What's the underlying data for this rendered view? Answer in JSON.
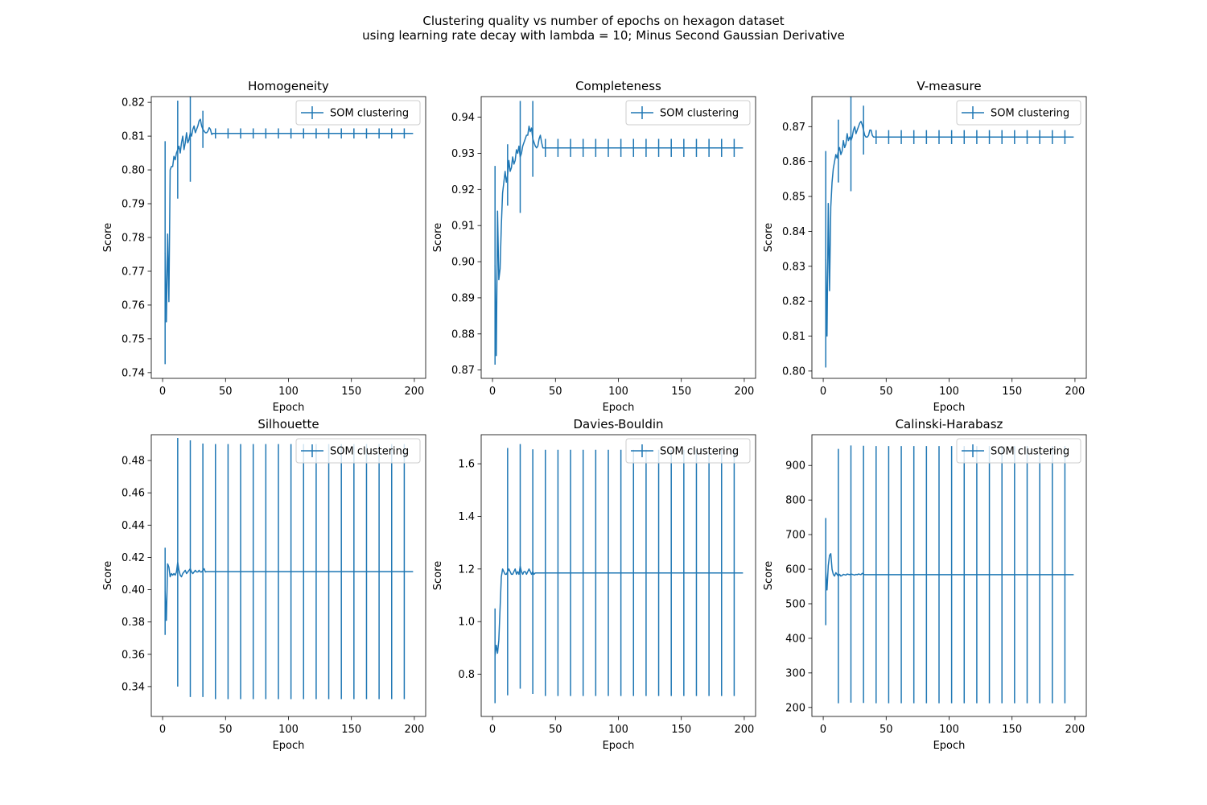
{
  "figure": {
    "title_line1": "Clustering quality vs number of epochs on hexagon dataset",
    "title_line2": "using learning rate decay with lambda = 10; Minus Second Gaussian Derivative",
    "line_color": "#1f77b4",
    "error_bar_every": 10
  },
  "chart_data": [
    {
      "type": "line",
      "title": "Homogeneity",
      "xlabel": "Epoch",
      "ylabel": "Score",
      "xlim": [
        -9,
        209
      ],
      "ylim": [
        0.7383,
        0.8217
      ],
      "xticks": [
        0,
        50,
        100,
        150,
        200
      ],
      "yticks": [
        0.74,
        0.75,
        0.76,
        0.77,
        0.78,
        0.79,
        0.8,
        0.81,
        0.82
      ],
      "ytick_decimals": 2,
      "legend": "top-right",
      "series": [
        {
          "name": "SOM clustering",
          "x_start": 2,
          "x_end": 199,
          "head": [
            0.7755,
            0.755,
            0.781,
            0.761,
            0.8,
            0.801,
            0.801,
            0.804,
            0.803,
            0.805,
            0.806,
            0.807,
            0.805,
            0.808,
            0.81,
            0.806,
            0.808,
            0.811,
            0.808,
            0.809,
            0.811,
            0.81,
            0.812,
            0.813,
            0.811,
            0.812,
            0.813,
            0.8145,
            0.815,
            0.813,
            0.812,
            0.8115,
            0.811,
            0.811,
            0.8115,
            0.8125,
            0.812,
            0.8105,
            0.8108,
            0.8108
          ],
          "plateau": 0.8108,
          "err_head": [
            0.033,
            0.0025,
            0.022,
            0.003,
            0.004,
            0.003,
            0.003,
            0.004,
            0.003,
            0.003,
            0.0145,
            0.003,
            0.003,
            0.004,
            0.003,
            0.003,
            0.004,
            0.003,
            0.003,
            0.003,
            0.0145,
            0.003,
            0.003,
            0.004,
            0.003,
            0.003,
            0.004,
            0.003,
            0.003,
            0.003,
            0.0055,
            0.002,
            0.002,
            0.002,
            0.002,
            0.002,
            0.002,
            0.002,
            0.002,
            0.002
          ],
          "err_plateau": 0.0015
        }
      ]
    },
    {
      "type": "line",
      "title": "Completeness",
      "xlabel": "Epoch",
      "ylabel": "Score",
      "xlim": [
        -9,
        209
      ],
      "ylim": [
        0.8677,
        0.9457
      ],
      "xticks": [
        0,
        50,
        100,
        150,
        200
      ],
      "yticks": [
        0.87,
        0.88,
        0.89,
        0.9,
        0.91,
        0.92,
        0.93,
        0.94
      ],
      "ytick_decimals": 2,
      "legend": "top-right",
      "series": [
        {
          "name": "SOM clustering",
          "x_start": 2,
          "x_end": 199,
          "head": [
            0.899,
            0.874,
            0.914,
            0.895,
            0.898,
            0.91,
            0.919,
            0.922,
            0.925,
            0.922,
            0.924,
            0.928,
            0.925,
            0.926,
            0.929,
            0.927,
            0.928,
            0.931,
            0.93,
            0.932,
            0.929,
            0.93,
            0.932,
            0.933,
            0.934,
            0.935,
            0.935,
            0.9375,
            0.936,
            0.937,
            0.934,
            0.933,
            0.932,
            0.9315,
            0.932,
            0.934,
            0.935,
            0.933,
            0.9315,
            0.9315
          ],
          "plateau": 0.9315,
          "err_head": [
            0.0275,
            0.0025,
            0.007,
            0.003,
            0.003,
            0.004,
            0.003,
            0.003,
            0.004,
            0.003,
            0.0085,
            0.003,
            0.003,
            0.004,
            0.003,
            0.003,
            0.004,
            0.003,
            0.003,
            0.003,
            0.0155,
            0.003,
            0.003,
            0.004,
            0.003,
            0.003,
            0.004,
            0.003,
            0.003,
            0.003,
            0.0105,
            0.0025,
            0.0025,
            0.0025,
            0.0025,
            0.0025,
            0.0025,
            0.0025,
            0.0025,
            0.0025
          ],
          "err_plateau": 0.0025
        }
      ]
    },
    {
      "type": "line",
      "title": "V-measure",
      "xlabel": "Epoch",
      "ylabel": "Score",
      "xlim": [
        -9,
        209
      ],
      "ylim": [
        0.7979,
        0.8786
      ],
      "xticks": [
        0,
        50,
        100,
        150,
        200
      ],
      "yticks": [
        0.8,
        0.81,
        0.82,
        0.83,
        0.84,
        0.85,
        0.86,
        0.87
      ],
      "ytick_decimals": 2,
      "legend": "top-right",
      "series": [
        {
          "name": "SOM clustering",
          "x_start": 2,
          "x_end": 199,
          "head": [
            0.832,
            0.81,
            0.848,
            0.823,
            0.847,
            0.854,
            0.858,
            0.86,
            0.862,
            0.861,
            0.863,
            0.864,
            0.862,
            0.863,
            0.866,
            0.864,
            0.865,
            0.868,
            0.866,
            0.867,
            0.866,
            0.867,
            0.869,
            0.87,
            0.868,
            0.869,
            0.87,
            0.871,
            0.8715,
            0.8705,
            0.869,
            0.8675,
            0.867,
            0.867,
            0.8675,
            0.869,
            0.869,
            0.8675,
            0.867,
            0.867
          ],
          "plateau": 0.867,
          "err_head": [
            0.031,
            0.0025,
            0.011,
            0.003,
            0.003,
            0.004,
            0.003,
            0.003,
            0.004,
            0.003,
            0.009,
            0.003,
            0.003,
            0.004,
            0.003,
            0.003,
            0.004,
            0.003,
            0.003,
            0.003,
            0.0145,
            0.003,
            0.003,
            0.004,
            0.003,
            0.003,
            0.004,
            0.003,
            0.003,
            0.003,
            0.007,
            0.002,
            0.002,
            0.002,
            0.002,
            0.002,
            0.002,
            0.002,
            0.002,
            0.002
          ],
          "err_plateau": 0.002
        }
      ]
    },
    {
      "type": "line",
      "title": "Silhouette",
      "xlabel": "Epoch",
      "ylabel": "Score",
      "xlim": [
        -9,
        209
      ],
      "ylim": [
        0.3215,
        0.496
      ],
      "xticks": [
        0,
        50,
        100,
        150,
        200
      ],
      "yticks": [
        0.34,
        0.36,
        0.38,
        0.4,
        0.42,
        0.44,
        0.46,
        0.48
      ],
      "ytick_decimals": 2,
      "legend": "top-right",
      "series": [
        {
          "name": "SOM clustering",
          "x_start": 2,
          "x_end": 199,
          "head": [
            0.399,
            0.381,
            0.416,
            0.414,
            0.408,
            0.41,
            0.409,
            0.41,
            0.409,
            0.411,
            0.417,
            0.412,
            0.409,
            0.408,
            0.41,
            0.411,
            0.412,
            0.41,
            0.411,
            0.412,
            0.413,
            0.411,
            0.41,
            0.411,
            0.412,
            0.411,
            0.411,
            0.412,
            0.411,
            0.411,
            0.412,
            0.413,
            0.411,
            0.4112,
            0.4112,
            0.4112,
            0.4112,
            0.4112,
            0.4112,
            0.4112
          ],
          "plateau": 0.4112,
          "err_head": [
            0.027,
            0.002,
            0.002,
            0.002,
            0.002,
            0.002,
            0.002,
            0.002,
            0.002,
            0.002,
            0.077,
            0.002,
            0.002,
            0.002,
            0.002,
            0.002,
            0.002,
            0.002,
            0.002,
            0.002,
            0.0795,
            0.002,
            0.002,
            0.002,
            0.002,
            0.002,
            0.002,
            0.002,
            0.002,
            0.002,
            0.0785,
            0.002,
            0.002,
            0.002,
            0.002,
            0.002,
            0.002,
            0.002,
            0.002,
            0.002
          ],
          "err_plateau": 0.079
        }
      ]
    },
    {
      "type": "line",
      "title": "Davies-Bouldin",
      "xlabel": "Epoch",
      "ylabel": "Score",
      "xlim": [
        -9,
        209
      ],
      "ylim": [
        0.6395,
        1.7105
      ],
      "xticks": [
        0,
        50,
        100,
        150,
        200
      ],
      "yticks": [
        0.8,
        1.0,
        1.2,
        1.4,
        1.6
      ],
      "ytick_decimals": 1,
      "legend": "top-right",
      "series": [
        {
          "name": "SOM clustering",
          "x_start": 2,
          "x_end": 199,
          "head": [
            0.87,
            0.91,
            0.88,
            0.93,
            1.05,
            1.17,
            1.2,
            1.19,
            1.18,
            1.18,
            1.19,
            1.2,
            1.19,
            1.18,
            1.18,
            1.19,
            1.2,
            1.18,
            1.19,
            1.18,
            1.21,
            1.19,
            1.18,
            1.19,
            1.19,
            1.18,
            1.19,
            1.2,
            1.19,
            1.18,
            1.19,
            1.18,
            1.185,
            1.185,
            1.185,
            1.185,
            1.185,
            1.185,
            1.185,
            1.185
          ],
          "plateau": 1.185,
          "err_head": [
            0.18,
            0.01,
            0.01,
            0.01,
            0.01,
            0.01,
            0.01,
            0.01,
            0.01,
            0.01,
            0.47,
            0.01,
            0.01,
            0.01,
            0.01,
            0.01,
            0.01,
            0.01,
            0.01,
            0.01,
            0.465,
            0.01,
            0.01,
            0.01,
            0.01,
            0.01,
            0.01,
            0.01,
            0.01,
            0.01,
            0.465,
            0.01,
            0.01,
            0.01,
            0.01,
            0.01,
            0.01,
            0.01,
            0.01,
            0.01
          ],
          "err_plateau": 0.468
        }
      ]
    },
    {
      "type": "line",
      "title": "Calinski-Harabasz",
      "xlabel": "Epoch",
      "ylabel": "Score",
      "xlim": [
        -9,
        209
      ],
      "ylim": [
        174,
        989
      ],
      "xticks": [
        0,
        50,
        100,
        150,
        200
      ],
      "yticks": [
        200,
        300,
        400,
        500,
        600,
        700,
        800,
        900
      ],
      "ytick_decimals": 0,
      "legend": "top-right",
      "series": [
        {
          "name": "SOM clustering",
          "x_start": 2,
          "x_end": 199,
          "head": [
            593,
            540,
            610,
            640,
            645,
            600,
            585,
            580,
            590,
            585,
            580,
            585,
            580,
            582,
            585,
            584,
            583,
            586,
            585,
            584,
            586,
            585,
            584,
            583,
            585,
            584,
            586,
            585,
            584,
            588,
            585,
            584,
            584,
            584,
            584,
            584,
            584,
            584,
            584,
            584
          ],
          "plateau": 584,
          "err_head": [
            155,
            3,
            3,
            3,
            3,
            3,
            3,
            3,
            3,
            3,
            368,
            3,
            3,
            3,
            3,
            3,
            3,
            3,
            3,
            3,
            372,
            3,
            3,
            3,
            3,
            3,
            3,
            3,
            3,
            3,
            372,
            3,
            3,
            3,
            3,
            3,
            3,
            3,
            3,
            3
          ],
          "err_plateau": 372
        }
      ]
    }
  ]
}
